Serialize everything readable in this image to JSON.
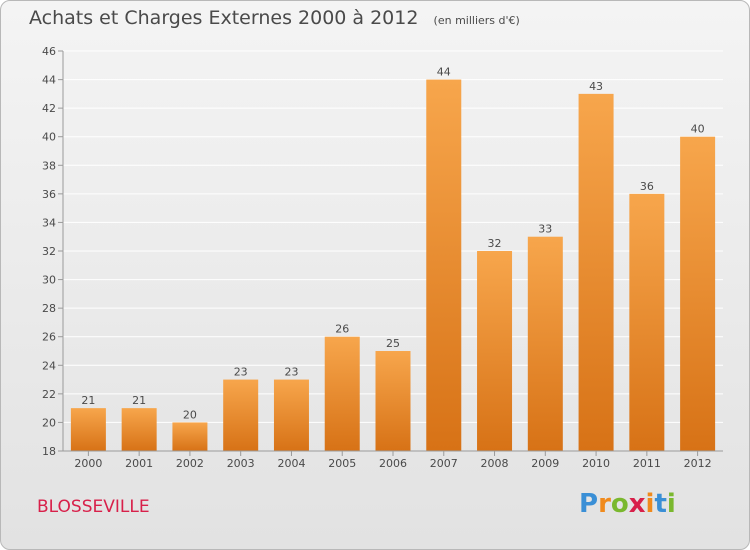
{
  "title": "Achats et Charges Externes 2000 à 2012",
  "unit_note": "(en milliers d'€)",
  "commune": "BLOSSEVILLE",
  "logo": {
    "text": "Proxiti",
    "letters": [
      {
        "ch": "P",
        "color": "#3a8fd6"
      },
      {
        "ch": "r",
        "color": "#f08a1c"
      },
      {
        "ch": "o",
        "color": "#7ab82e"
      },
      {
        "ch": "x",
        "color": "#d8204a"
      },
      {
        "ch": "i",
        "color": "#f08a1c"
      },
      {
        "ch": "t",
        "color": "#3a8fd6"
      },
      {
        "ch": "i",
        "color": "#7ab82e"
      }
    ]
  },
  "colors": {
    "bar_light": "#f7a64c",
    "bar_dark": "#d77216",
    "axis": "#9a9a9a",
    "grid": "#ffffff",
    "text": "#4a4a4a"
  },
  "chart_data": {
    "type": "bar",
    "title": "Achats et Charges Externes 2000 à 2012",
    "categories": [
      "2000",
      "2001",
      "2002",
      "2003",
      "2004",
      "2005",
      "2006",
      "2007",
      "2008",
      "2009",
      "2010",
      "2011",
      "2012"
    ],
    "values": [
      21,
      21,
      20,
      23,
      23,
      26,
      25,
      44,
      32,
      33,
      43,
      36,
      40
    ],
    "ylim": [
      18,
      46
    ],
    "yticks": [
      18,
      20,
      22,
      24,
      26,
      28,
      30,
      32,
      34,
      36,
      38,
      40,
      42,
      44,
      46
    ],
    "grid": true,
    "data_labels": true
  }
}
